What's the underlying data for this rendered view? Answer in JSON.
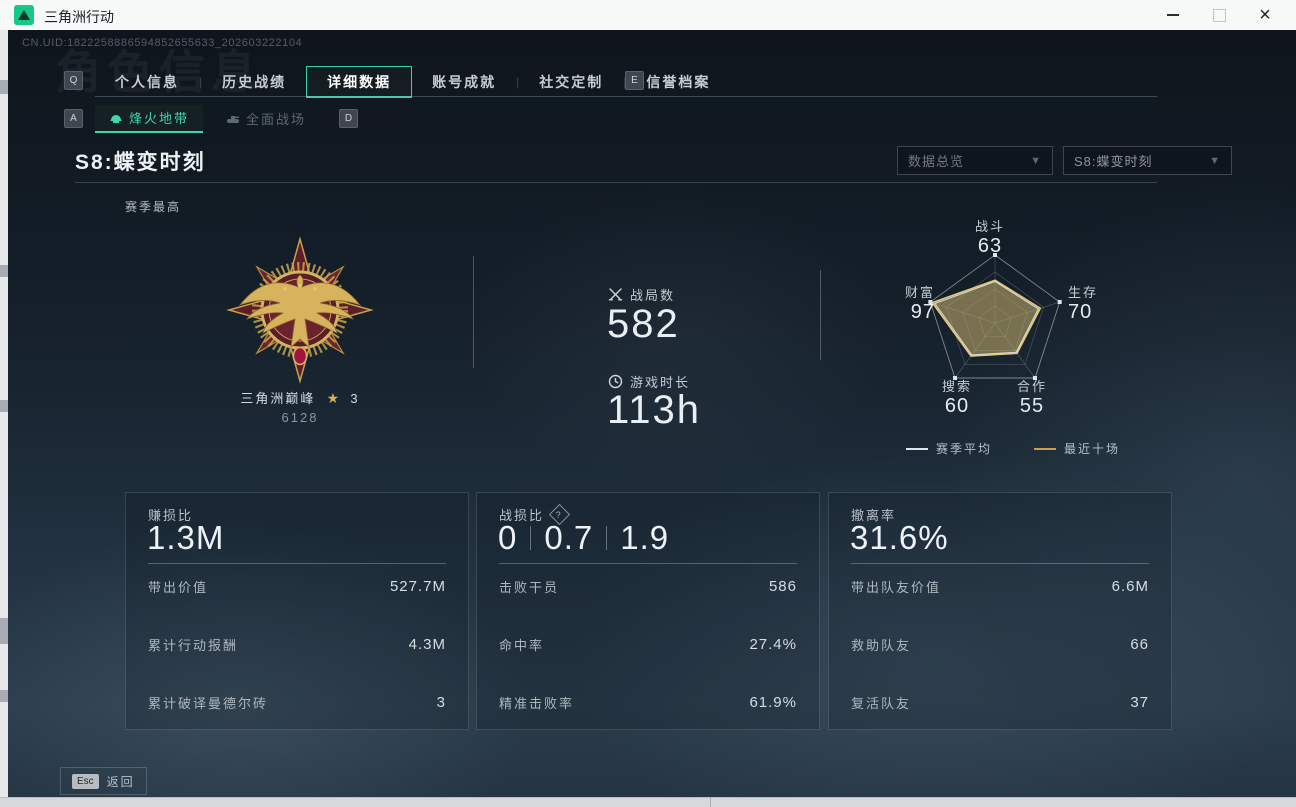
{
  "window": {
    "title": "三角洲行动",
    "controls": {
      "minimize": "minimize",
      "maximize": "maximize",
      "close": "×"
    }
  },
  "header": {
    "uid": "CN.UID:1822258886594852655633_202603222104",
    "watermark": "角色信息"
  },
  "tabs": {
    "prev_key": "Q",
    "next_key": "E",
    "items": [
      {
        "label": "个人信息",
        "active": false
      },
      {
        "label": "历史战绩",
        "active": false
      },
      {
        "label": "详细数据",
        "active": true
      },
      {
        "label": "账号成就",
        "active": false
      },
      {
        "label": "社交定制",
        "active": false
      },
      {
        "label": "信誉档案",
        "active": false
      }
    ]
  },
  "subtabs": {
    "prev_key": "A",
    "next_key": "D",
    "items": [
      {
        "label": "烽火地带",
        "active": true
      },
      {
        "label": "全面战场",
        "active": false
      }
    ]
  },
  "season": {
    "title": "S8:蝶变时刻",
    "best_label": "赛季最高",
    "filters": [
      {
        "value": "数据总览"
      },
      {
        "value": "S8:蝶变时刻"
      }
    ]
  },
  "medal": {
    "name": "三角洲巅峰",
    "star_icon": "★",
    "star_count": "3",
    "score": "6128"
  },
  "summary": {
    "battles": {
      "label": "战局数",
      "value": "582"
    },
    "playtime": {
      "label": "游戏时长",
      "value": "113h"
    }
  },
  "chart_data": {
    "type": "radar",
    "categories": [
      "战斗",
      "生存",
      "合作",
      "搜索",
      "财富"
    ],
    "display_values": [
      "63",
      "70",
      "55",
      "60",
      "97"
    ],
    "max": 100,
    "series": [
      {
        "name": "赛季平均",
        "values": [
          61,
          67,
          53,
          58,
          93
        ],
        "color": "#dfe7ee"
      },
      {
        "name": "最近十场",
        "values": [
          63,
          70,
          55,
          60,
          97
        ],
        "color": "#cf9b4e"
      }
    ],
    "legend_position": "bottom",
    "grid": true
  },
  "cards": [
    {
      "title": "赚损比",
      "values": [
        "1.3M"
      ],
      "rows": [
        [
          "带出价值",
          "527.7M"
        ],
        [
          "累计行动报酬",
          "4.3M"
        ],
        [
          "累计破译曼德尔砖",
          "3"
        ]
      ]
    },
    {
      "title": "战损比",
      "help": "?",
      "values": [
        "0",
        "0.7",
        "1.9"
      ],
      "rows": [
        [
          "击败干员",
          "586"
        ],
        [
          "命中率",
          "27.4%"
        ],
        [
          "精准击败率",
          "61.9%"
        ]
      ]
    },
    {
      "title": "撤离率",
      "values": [
        "31.6%"
      ],
      "rows": [
        [
          "带出队友价值",
          "6.6M"
        ],
        [
          "救助队友",
          "66"
        ],
        [
          "复活队友",
          "37"
        ]
      ]
    }
  ],
  "footer": {
    "key": "Esc",
    "label": "返回"
  }
}
